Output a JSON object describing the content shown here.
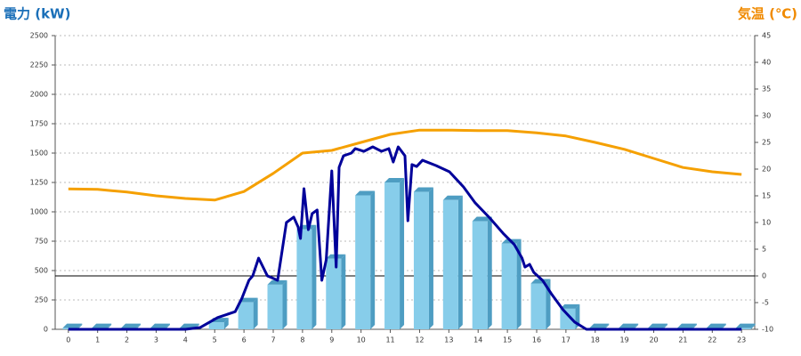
{
  "chart_data": {
    "type": "bar",
    "y_title": "電力 (kW)",
    "y2_title": "気温 (℃)",
    "x": [
      0,
      1,
      2,
      3,
      4,
      5,
      6,
      7,
      8,
      9,
      10,
      11,
      12,
      13,
      14,
      15,
      16,
      17,
      18,
      19,
      20,
      21,
      22,
      23
    ],
    "xlim": [
      -0.45,
      23.45
    ],
    "xticks": [
      0,
      1,
      2,
      3,
      4,
      5,
      6,
      7,
      8,
      9,
      10,
      11,
      12,
      13,
      14,
      15,
      16,
      17,
      18,
      19,
      20,
      21,
      22,
      23
    ],
    "ylim": [
      0,
      2500
    ],
    "yticks": [
      0,
      250,
      500,
      750,
      1000,
      1250,
      1500,
      1750,
      2000,
      2250,
      2500
    ],
    "y2lim": [
      -10,
      45
    ],
    "y2ticks": [
      -10,
      -5,
      0,
      5,
      10,
      15,
      20,
      25,
      30,
      35,
      40,
      45
    ],
    "y2_baseline": 0,
    "grid": true,
    "series": [
      {
        "type": "bar",
        "color": "#87cdea",
        "side_color": "#4e9dc2",
        "values": [
          10,
          10,
          10,
          10,
          10,
          60,
          230,
          380,
          850,
          600,
          1140,
          1250,
          1170,
          1100,
          920,
          730,
          390,
          175,
          10,
          10,
          10,
          10,
          10,
          10
        ]
      },
      {
        "type": "line",
        "axis": "y2",
        "color": "#f5a000",
        "values": [
          16.3,
          16.2,
          15.7,
          15,
          14.5,
          14.2,
          15.8,
          19.2,
          23,
          23.5,
          25,
          26.5,
          27.3,
          27.3,
          27.2,
          27.2,
          26.8,
          26.2,
          25,
          23.7,
          22,
          20.3,
          19.5,
          19
        ]
      },
      {
        "type": "line",
        "color": "#00009a",
        "x": [
          0,
          4,
          4.5,
          5.1,
          5.7,
          5.93,
          6.17,
          6.3,
          6.5,
          6.8,
          6.94,
          7.15,
          7.45,
          7.7,
          7.85,
          7.93,
          8.05,
          8.2,
          8.33,
          8.5,
          8.66,
          8.81,
          9.0,
          9.15,
          9.25,
          9.4,
          9.67,
          9.8,
          10.1,
          10.4,
          10.7,
          10.95,
          11.1,
          11.27,
          11.5,
          11.6,
          11.74,
          11.9,
          12.1,
          12.56,
          13.02,
          13.5,
          13.9,
          14.4,
          14.85,
          15.24,
          15.5,
          15.6,
          15.76,
          15.9,
          16.2,
          16.5,
          16.9,
          17.3,
          17.7,
          23
        ],
        "values": [
          0,
          0,
          15,
          100,
          150,
          265,
          417,
          455,
          606,
          455,
          440,
          417,
          909,
          955,
          871,
          773,
          1197,
          848,
          985,
          1015,
          417,
          591,
          1348,
          530,
          1379,
          1477,
          1500,
          1538,
          1515,
          1553,
          1515,
          1538,
          1424,
          1553,
          1477,
          924,
          1402,
          1386,
          1439,
          1394,
          1341,
          1212,
          1076,
          947,
          818,
          720,
          606,
          530,
          553,
          485,
          417,
          303,
          167,
          61,
          0,
          0
        ]
      }
    ]
  }
}
